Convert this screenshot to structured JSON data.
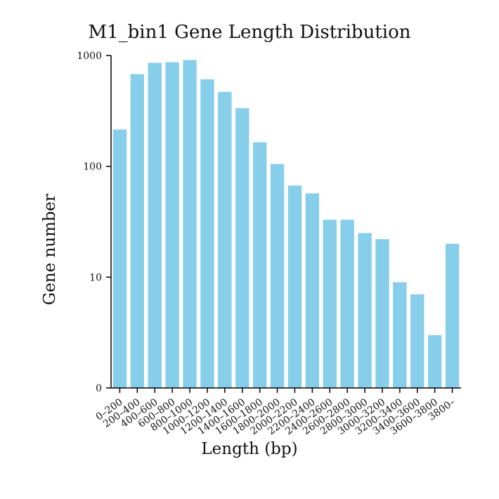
{
  "chart_data": {
    "type": "bar",
    "title": "M1_bin1 Gene Length Distribution",
    "xlabel": "Length (bp)",
    "ylabel": "Gene number",
    "yscale": "log",
    "ylim": [
      1,
      1000
    ],
    "yticks": [
      {
        "value": 1,
        "label": "0"
      },
      {
        "value": 10,
        "label": "10"
      },
      {
        "value": 100,
        "label": "100"
      },
      {
        "value": 1000,
        "label": "1000"
      }
    ],
    "categories": [
      "0–200",
      "200–400",
      "400–600",
      "600–800",
      "800–1000",
      "1000–1200",
      "1200–1400",
      "1400–1600",
      "1600–1800",
      "1800–2000",
      "2000–2200",
      "2200–2400",
      "2400–2600",
      "2600–2800",
      "2800–3000",
      "3000–3200",
      "3200–3400",
      "3400–3600",
      "3600–3800",
      "3800–"
    ],
    "values": [
      215,
      680,
      860,
      870,
      910,
      610,
      470,
      335,
      165,
      105,
      67,
      57,
      33,
      33,
      25,
      22,
      9,
      7,
      3,
      20
    ],
    "bar_color": "#87ceeb"
  }
}
